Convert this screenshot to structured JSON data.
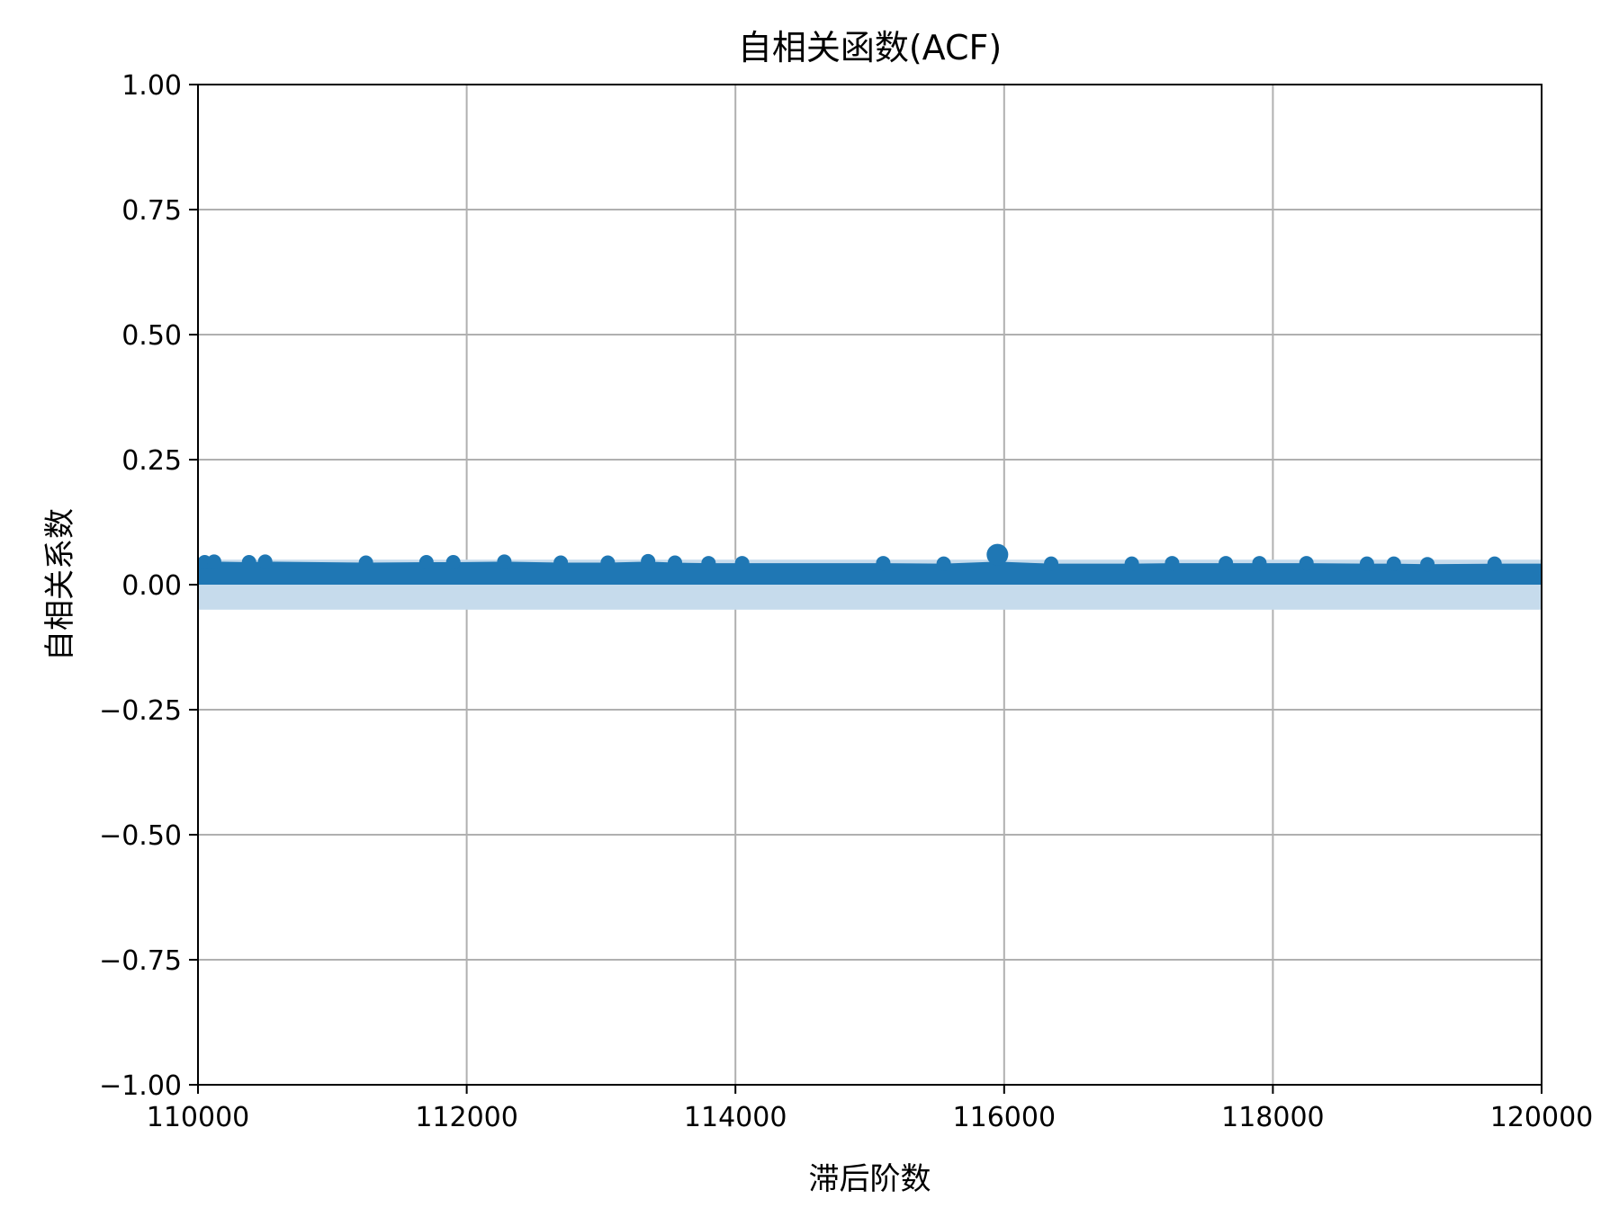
{
  "chart_data": {
    "type": "scatter",
    "title": "自相关函数(ACF)",
    "xlabel": "滞后阶数",
    "ylabel": "自相关系数",
    "xlim": [
      110000,
      120000
    ],
    "ylim": [
      -1.0,
      1.0
    ],
    "grid": true,
    "x_ticks": [
      110000,
      112000,
      114000,
      116000,
      118000,
      120000
    ],
    "x_tick_labels": [
      "110000",
      "112000",
      "114000",
      "116000",
      "118000",
      "120000"
    ],
    "y_ticks": [
      1.0,
      0.75,
      0.5,
      0.25,
      0.0,
      -0.25,
      -0.5,
      -0.75,
      -1.0
    ],
    "y_tick_labels": [
      "1.00",
      "0.75",
      "0.50",
      "0.25",
      "0.00",
      "−0.25",
      "−0.50",
      "−0.75",
      "−1.00"
    ],
    "confidence_band": [
      -0.05,
      0.05
    ],
    "baseline": 0.0,
    "marker_color": "#1f77b4",
    "band_color": "#c6dbec",
    "grid_color": "#b0b0b0",
    "points": [
      {
        "x": 110050,
        "y": 0.045
      },
      {
        "x": 110120,
        "y": 0.046
      },
      {
        "x": 110380,
        "y": 0.045
      },
      {
        "x": 110500,
        "y": 0.046
      },
      {
        "x": 111250,
        "y": 0.044
      },
      {
        "x": 111700,
        "y": 0.045
      },
      {
        "x": 111900,
        "y": 0.045
      },
      {
        "x": 112280,
        "y": 0.046
      },
      {
        "x": 112700,
        "y": 0.044
      },
      {
        "x": 113050,
        "y": 0.044
      },
      {
        "x": 113350,
        "y": 0.047
      },
      {
        "x": 113550,
        "y": 0.044
      },
      {
        "x": 113800,
        "y": 0.043
      },
      {
        "x": 114050,
        "y": 0.043
      },
      {
        "x": 115100,
        "y": 0.043
      },
      {
        "x": 115550,
        "y": 0.042
      },
      {
        "x": 115950,
        "y": 0.06
      },
      {
        "x": 116350,
        "y": 0.042
      },
      {
        "x": 116950,
        "y": 0.042
      },
      {
        "x": 117250,
        "y": 0.043
      },
      {
        "x": 117650,
        "y": 0.043
      },
      {
        "x": 117900,
        "y": 0.043
      },
      {
        "x": 118250,
        "y": 0.043
      },
      {
        "x": 118700,
        "y": 0.042
      },
      {
        "x": 118900,
        "y": 0.042
      },
      {
        "x": 119150,
        "y": 0.041
      },
      {
        "x": 119650,
        "y": 0.042
      }
    ]
  }
}
